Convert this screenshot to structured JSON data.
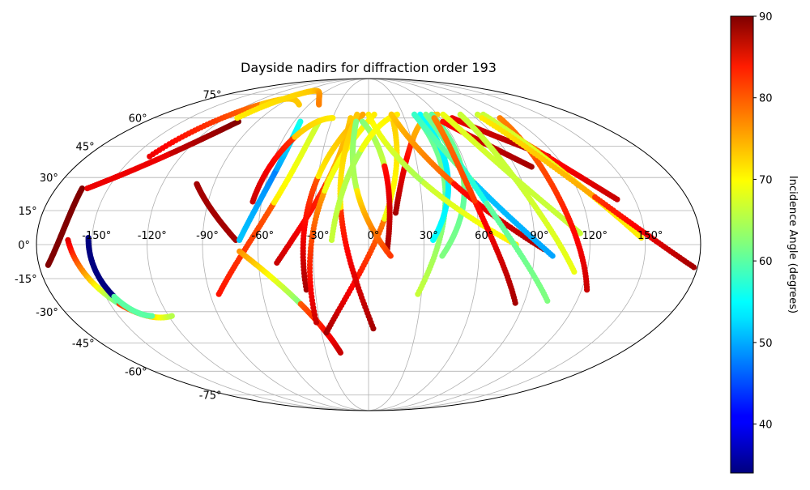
{
  "chart_data": {
    "type": "scatter",
    "projection": "mollweide",
    "title": "Dayside nadirs for diffraction order 193",
    "lon_ticks": [
      "-150°",
      "-120°",
      "-90°",
      "-60°",
      "-30°",
      "0°",
      "30°",
      "60°",
      "90°",
      "120°",
      "150°"
    ],
    "lon_tick_values": [
      -150,
      -120,
      -90,
      -60,
      -30,
      0,
      30,
      60,
      90,
      120,
      150
    ],
    "lat_ticks": [
      "-75°",
      "-60°",
      "-45°",
      "-30°",
      "-15°",
      "0°",
      "15°",
      "30°",
      "45°",
      "60°",
      "75°"
    ],
    "lat_tick_values": [
      -75,
      -60,
      -45,
      -30,
      -15,
      0,
      15,
      30,
      45,
      60,
      75
    ],
    "grid": true,
    "colorbar": {
      "label": "Incidence Angle (degrees)",
      "colormap": "jet",
      "vmin": 34,
      "vmax": 90,
      "ticks": [
        "40",
        "50",
        "60",
        "70",
        "80",
        "90"
      ],
      "tick_values": [
        40,
        50,
        60,
        70,
        80,
        90
      ]
    },
    "tracks": [
      {
        "p1": [
          -175,
          -9
        ],
        "p2": [
          -165,
          25
        ],
        "i1": 90,
        "i2": 90,
        "a1": 90,
        "a2": 90,
        "dir": -1,
        "lat_extra": 0
      },
      {
        "p1": [
          -163,
          2
        ],
        "p2": [
          -118,
          -32
        ],
        "i1": 85,
        "i2": 65,
        "a1": 60,
        "a2": 80,
        "dir": -1,
        "lat_extra": -1
      },
      {
        "p1": [
          -152,
          3
        ],
        "p2": [
          -130,
          -32
        ],
        "i1": 34,
        "i2": 60,
        "a1": 34,
        "a2": 60,
        "dir": -1,
        "lat_extra": -1
      },
      {
        "p1": [
          -100,
          27
        ],
        "p2": [
          -72,
          2
        ],
        "i1": 88,
        "i2": 88,
        "a1": 88,
        "a2": 88,
        "dir": -1,
        "lat_extra": 1
      },
      {
        "p1": [
          -85,
          -22
        ],
        "p2": [
          -40,
          58
        ],
        "i1": 82,
        "i2": 66,
        "a1": 78,
        "a2": 70,
        "dir": -1,
        "lat_extra": 1
      },
      {
        "p1": [
          -70,
          2
        ],
        "p2": [
          -55,
          58
        ],
        "i1": 52,
        "i2": 56,
        "a1": 48,
        "a2": 50,
        "dir": -1,
        "lat_extra": 1
      },
      {
        "p1": [
          -70,
          -3
        ],
        "p2": [
          -20,
          -50
        ],
        "i1": 75,
        "i2": 86,
        "a1": 62,
        "a2": 78,
        "dir": 1,
        "lat_extra": -1
      },
      {
        "p1": [
          -65,
          19
        ],
        "p2": [
          -30,
          60
        ],
        "i1": 86,
        "i2": 70,
        "a1": 80,
        "a2": 72,
        "dir": 1,
        "lat_extra": 1
      },
      {
        "p1": [
          -50,
          -8
        ],
        "p2": [
          -15,
          60
        ],
        "i1": 86,
        "i2": 72,
        "a1": 80,
        "a2": 74,
        "dir": -1,
        "lat_extra": 1
      },
      {
        "p1": [
          -35,
          -20
        ],
        "p2": [
          -5,
          62
        ],
        "i1": 88,
        "i2": 74,
        "a1": 78,
        "a2": 70,
        "dir": 1,
        "lat_extra": 1
      },
      {
        "p1": [
          -32,
          -35
        ],
        "p2": [
          5,
          62
        ],
        "i1": 86,
        "i2": 70,
        "a1": 74,
        "a2": 68,
        "dir": 1,
        "lat_extra": 1
      },
      {
        "p1": [
          -27,
          -40
        ],
        "p2": [
          20,
          62
        ],
        "i1": 88,
        "i2": 72,
        "a1": 76,
        "a2": 68,
        "dir": -1,
        "lat_extra": 1
      },
      {
        "p1": [
          -5,
          58
        ],
        "p2": [
          10,
          -3
        ],
        "i1": 62,
        "i2": 88,
        "a1": 66,
        "a2": 82,
        "dir": 1,
        "lat_extra": 1
      },
      {
        "p1": [
          3,
          -38
        ],
        "p2": [
          -10,
          62
        ],
        "i1": 88,
        "i2": 72,
        "a1": 80,
        "a2": 70,
        "dir": 1,
        "lat_extra": 1
      },
      {
        "p1": [
          -10,
          58
        ],
        "p2": [
          12,
          -5
        ],
        "i1": 62,
        "i2": 80,
        "a1": 65,
        "a2": 70,
        "dir": -1,
        "lat_extra": 0
      },
      {
        "p1": [
          -20,
          2
        ],
        "p2": [
          25,
          62
        ],
        "i1": 66,
        "i2": 70,
        "a1": 64,
        "a2": 68,
        "dir": 1,
        "lat_extra": 1
      },
      {
        "p1": [
          15,
          14
        ],
        "p2": [
          60,
          62
        ],
        "i1": 88,
        "i2": 72,
        "a1": 80,
        "a2": 74,
        "dir": 1,
        "lat_extra": 1
      },
      {
        "p1": [
          28,
          -22
        ],
        "p2": [
          40,
          62
        ],
        "i1": 66,
        "i2": 60,
        "a1": 60,
        "a2": 62,
        "dir": -1,
        "lat_extra": 1
      },
      {
        "p1": [
          35,
          2
        ],
        "p2": [
          45,
          62
        ],
        "i1": 55,
        "i2": 55,
        "a1": 54,
        "a2": 54,
        "dir": -1,
        "lat_extra": 0
      },
      {
        "p1": [
          40,
          -5
        ],
        "p2": [
          55,
          62
        ],
        "i1": 62,
        "i2": 60,
        "a1": 60,
        "a2": 62,
        "dir": -1,
        "lat_extra": 0
      },
      {
        "p1": [
          0,
          62
        ],
        "p2": [
          80,
          0
        ],
        "i1": 70,
        "i2": 70,
        "a1": 64,
        "a2": 66,
        "dir": -1,
        "lat_extra": 1
      },
      {
        "p1": [
          20,
          62
        ],
        "p2": [
          95,
          -2
        ],
        "i1": 72,
        "i2": 88,
        "a1": 78,
        "a2": 82,
        "dir": -1,
        "lat_extra": 1
      },
      {
        "p1": [
          40,
          62
        ],
        "p2": [
          100,
          -5
        ],
        "i1": 58,
        "i2": 50,
        "a1": 62,
        "a2": 52,
        "dir": -1,
        "lat_extra": 1
      },
      {
        "p1": [
          50,
          62
        ],
        "p2": [
          103,
          -25
        ],
        "i1": 62,
        "i2": 62,
        "a1": 56,
        "a2": 60,
        "dir": -1,
        "lat_extra": 1
      },
      {
        "p1": [
          85,
          -26
        ],
        "p2": [
          55,
          60
        ],
        "i1": 88,
        "i2": 76,
        "a1": 82,
        "a2": 80,
        "dir": 1,
        "lat_extra": 1
      },
      {
        "p1": [
          60,
          58
        ],
        "p2": [
          100,
          35
        ],
        "i1": 82,
        "i2": 88,
        "a1": 86,
        "a2": 86,
        "dir": -1,
        "lat_extra": 1
      },
      {
        "p1": [
          70,
          60
        ],
        "p2": [
          115,
          40
        ],
        "i1": 84,
        "i2": 88,
        "a1": 86,
        "a2": 86,
        "dir": -1,
        "lat_extra": 1
      },
      {
        "p1": [
          65,
          62
        ],
        "p2": [
          115,
          5
        ],
        "i1": 68,
        "i2": 66,
        "a1": 66,
        "a2": 66,
        "dir": -1,
        "lat_extra": 1
      },
      {
        "p1": [
          80,
          62
        ],
        "p2": [
          113,
          -12
        ],
        "i1": 66,
        "i2": 68,
        "a1": 66,
        "a2": 66,
        "dir": -1,
        "lat_extra": 1
      },
      {
        "p1": [
          95,
          62
        ],
        "p2": [
          140,
          20
        ],
        "i1": 66,
        "i2": 86,
        "a1": 78,
        "a2": 82,
        "dir": -1,
        "lat_extra": 1
      },
      {
        "p1": [
          123,
          -20
        ],
        "p2": [
          110,
          60
        ],
        "i1": 86,
        "i2": 76,
        "a1": 80,
        "a2": 80,
        "dir": 1,
        "lat_extra": 1
      },
      {
        "p1": [
          100,
          62
        ],
        "p2": [
          148,
          3
        ],
        "i1": 66,
        "i2": 70,
        "a1": 68,
        "a2": 70,
        "dir": -1,
        "lat_extra": 1
      },
      {
        "p1": [
          95,
          60
        ],
        "p2": [
          178,
          -10
        ],
        "i1": 70,
        "i2": 88,
        "a1": 74,
        "a2": 80,
        "dir": -1,
        "lat_extra": 1
      },
      {
        "p1": [
          -105,
          58
        ],
        "p2": [
          -162,
          25
        ],
        "i1": 90,
        "i2": 84,
        "a1": 86,
        "a2": 84,
        "dir": 1,
        "lat_extra": 1
      },
      {
        "p1": [
          -140,
          40
        ],
        "p2": [
          -70,
          68
        ],
        "i1": 84,
        "i2": 72,
        "a1": 76,
        "a2": 72,
        "dir": 1,
        "lat_extra": 1
      },
      {
        "p1": [
          -110,
          60
        ],
        "p2": [
          -50,
          68
        ],
        "i1": 70,
        "i2": 76,
        "a1": 72,
        "a2": 72,
        "dir": 1,
        "lat_extra": 1
      }
    ]
  }
}
